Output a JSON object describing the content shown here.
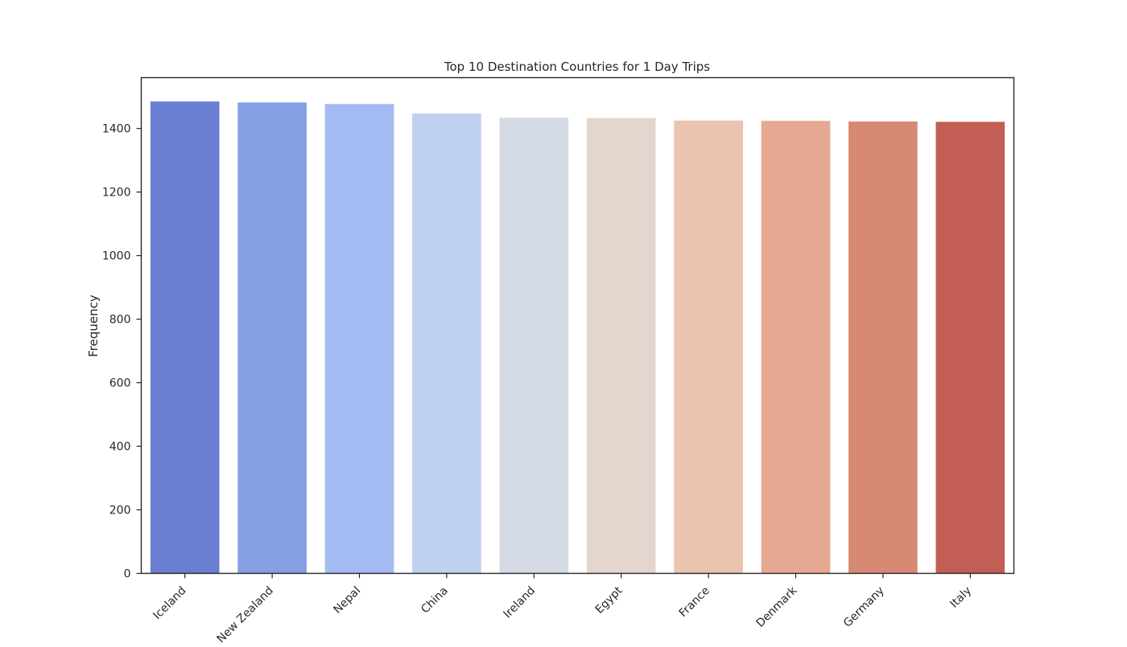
{
  "chart_data": {
    "type": "bar",
    "title": "Top 10 Destination Countries for 1 Day Trips",
    "xlabel": "",
    "ylabel": "Frequency",
    "categories": [
      "Iceland",
      "New Zealand",
      "Nepal",
      "China",
      "Ireland",
      "Egypt",
      "France",
      "Denmark",
      "Germany",
      "Italy"
    ],
    "values": [
      1485,
      1482,
      1477,
      1447,
      1434,
      1433,
      1425,
      1424,
      1422,
      1421
    ],
    "ylim": [
      0,
      1560
    ],
    "yticks": [
      0,
      200,
      400,
      600,
      800,
      1000,
      1200,
      1400
    ],
    "colors": [
      "#6a7fd1",
      "#86a0e5",
      "#a3bbf2",
      "#bfd0f1",
      "#d5dbe5",
      "#e4d6ce",
      "#eac4ae",
      "#e5a991",
      "#d88974",
      "#c25e53"
    ],
    "grid": false,
    "legend": "none"
  }
}
